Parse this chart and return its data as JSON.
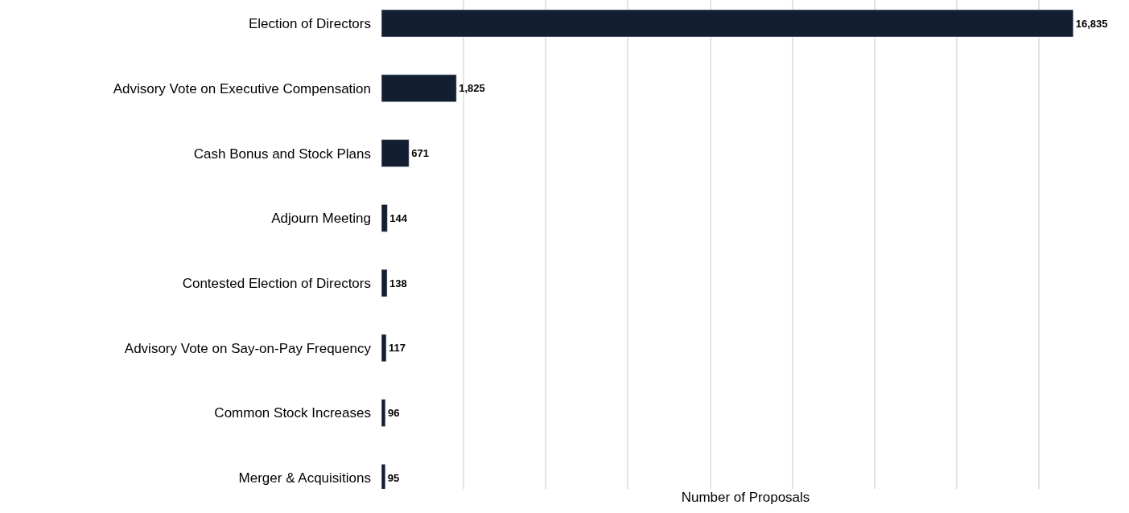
{
  "chart_data": {
    "type": "bar",
    "orientation": "horizontal",
    "xlabel": "Number of Proposals",
    "categories": [
      "Election of Directors",
      "Advisory Vote on Executive Compensation",
      "Cash Bonus and Stock Plans",
      "Adjourn Meeting",
      "Contested Election of Directors",
      "Advisory Vote on Say-on-Pay Frequency",
      "Common Stock Increases",
      "Merger & Acquisitions"
    ],
    "values": [
      16835,
      1825,
      671,
      144,
      138,
      117,
      96,
      95
    ],
    "color": "#131f30",
    "value_labels": [
      "16,835",
      "1,825",
      "671",
      "144",
      "138",
      "117",
      "96",
      "95"
    ],
    "tick_labels": "y",
    "grid": "x",
    "legend": false
  }
}
